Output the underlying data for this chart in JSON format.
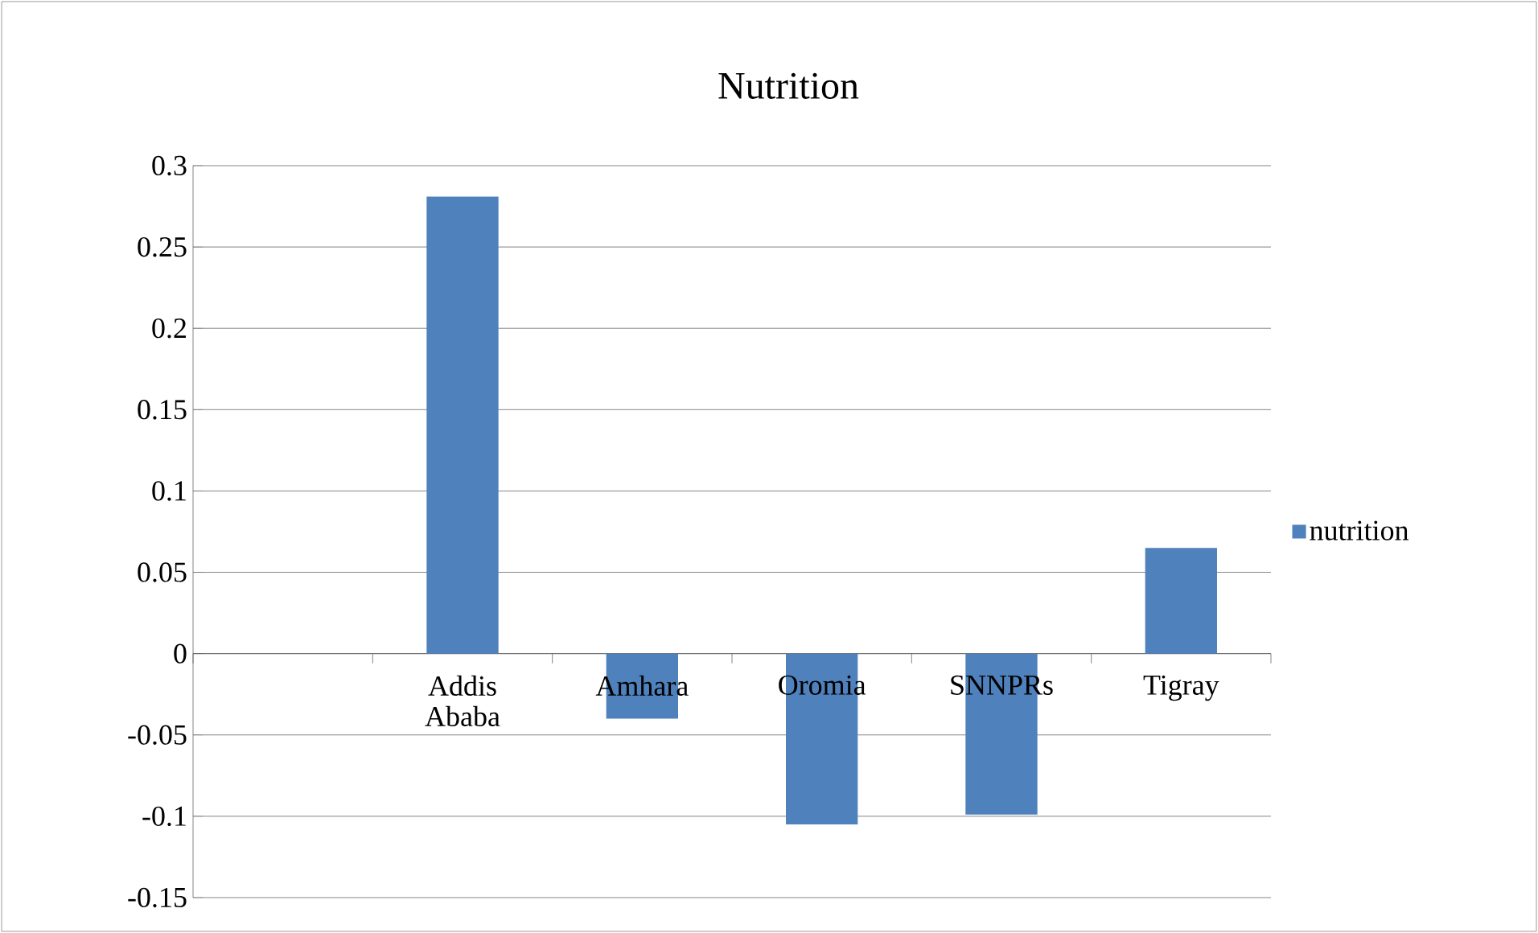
{
  "chart_data": {
    "type": "bar",
    "title": "Nutrition",
    "categories": [
      null,
      "Addis Ababa",
      "Amhara",
      "Oromia",
      "SNNPRs",
      "Tigray"
    ],
    "series": [
      {
        "name": "nutrition",
        "color": "#4f81bd",
        "values": [
          null,
          0.281,
          -0.04,
          -0.105,
          -0.099,
          0.065
        ]
      }
    ],
    "ylim": [
      -0.15,
      0.3
    ],
    "yticks": [
      -0.15,
      -0.1,
      -0.05,
      0,
      0.05,
      0.1,
      0.15,
      0.2,
      0.25,
      0.3
    ],
    "grid": "y",
    "legend": "right"
  }
}
